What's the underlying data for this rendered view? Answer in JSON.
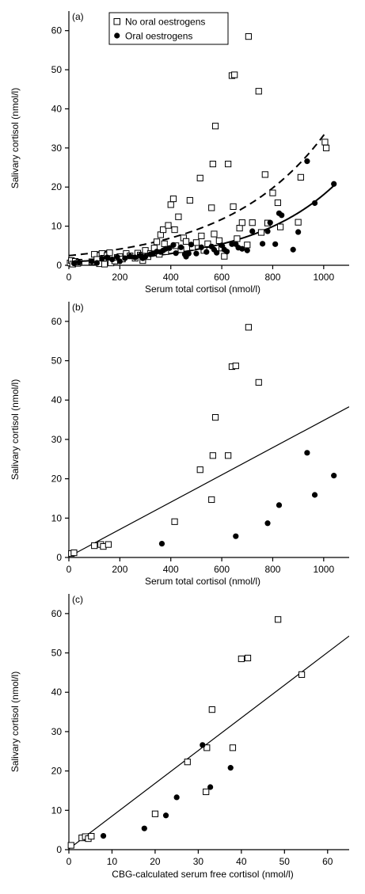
{
  "chart_data": [
    {
      "type": "scatter",
      "panel_label": "(a)",
      "xlabel": "Serum total cortisol (nmol/l)",
      "ylabel": "Salivary cortisol (nmol/l)",
      "xlim": [
        0,
        1100
      ],
      "ylim": [
        0,
        65
      ],
      "xticks": [
        0,
        200,
        400,
        600,
        800,
        1000
      ],
      "yticks": [
        0,
        10,
        20,
        30,
        40,
        50,
        60
      ],
      "legend": {
        "placement": "top-left",
        "entries": [
          "No oral oestrogens",
          "Oral oestrogens"
        ]
      },
      "series": [
        {
          "name": "No oral oestrogens",
          "marker": "open-square",
          "points": [
            [
              5,
              0.6
            ],
            [
              10,
              1.2
            ],
            [
              15,
              0.3
            ],
            [
              25,
              1.0
            ],
            [
              35,
              0.5
            ],
            [
              40,
              0.8
            ],
            [
              90,
              0.9
            ],
            [
              100,
              2.8
            ],
            [
              110,
              1.5
            ],
            [
              120,
              0.4
            ],
            [
              130,
              3.0
            ],
            [
              135,
              1.8
            ],
            [
              140,
              0.3
            ],
            [
              150,
              2.5
            ],
            [
              160,
              3.2
            ],
            [
              165,
              0.6
            ],
            [
              180,
              1.1
            ],
            [
              190,
              2.0
            ],
            [
              200,
              2.2
            ],
            [
              210,
              1.6
            ],
            [
              225,
              3.0
            ],
            [
              240,
              2.4
            ],
            [
              260,
              1.8
            ],
            [
              270,
              3.1
            ],
            [
              280,
              2.6
            ],
            [
              290,
              1.2
            ],
            [
              300,
              3.8
            ],
            [
              310,
              2.2
            ],
            [
              320,
              3.0
            ],
            [
              335,
              4.4
            ],
            [
              345,
              6.0
            ],
            [
              355,
              2.8
            ],
            [
              360,
              7.8
            ],
            [
              370,
              9.1
            ],
            [
              375,
              5.5
            ],
            [
              380,
              3.5
            ],
            [
              390,
              10.2
            ],
            [
              400,
              15.5
            ],
            [
              410,
              17.0
            ],
            [
              415,
              9.1
            ],
            [
              420,
              5.0
            ],
            [
              430,
              12.4
            ],
            [
              440,
              4.0
            ],
            [
              450,
              7.0
            ],
            [
              460,
              6.1
            ],
            [
              475,
              16.6
            ],
            [
              485,
              4.6
            ],
            [
              500,
              5.8
            ],
            [
              515,
              22.3
            ],
            [
              520,
              7.5
            ],
            [
              530,
              3.8
            ],
            [
              545,
              5.5
            ],
            [
              560,
              14.7
            ],
            [
              565,
              25.9
            ],
            [
              570,
              8.0
            ],
            [
              575,
              35.6
            ],
            [
              590,
              6.3
            ],
            [
              600,
              4.4
            ],
            [
              610,
              2.3
            ],
            [
              625,
              25.9
            ],
            [
              640,
              48.5
            ],
            [
              645,
              15.0
            ],
            [
              650,
              48.7
            ],
            [
              660,
              6.8
            ],
            [
              670,
              9.5
            ],
            [
              680,
              10.9
            ],
            [
              700,
              5.2
            ],
            [
              705,
              58.5
            ],
            [
              720,
              10.9
            ],
            [
              745,
              44.5
            ],
            [
              755,
              8.4
            ],
            [
              770,
              23.2
            ],
            [
              780,
              10.8
            ],
            [
              800,
              18.5
            ],
            [
              820,
              16.0
            ],
            [
              830,
              9.8
            ],
            [
              900,
              11.0
            ],
            [
              910,
              22.5
            ],
            [
              1005,
              31.5
            ],
            [
              1010,
              30.0
            ]
          ]
        },
        {
          "name": "Oral oestrogens",
          "marker": "filled-circle",
          "points": [
            [
              20,
              0.5
            ],
            [
              40,
              0.8
            ],
            [
              90,
              1.0
            ],
            [
              110,
              0.6
            ],
            [
              130,
              1.7
            ],
            [
              150,
              2.0
            ],
            [
              170,
              1.5
            ],
            [
              190,
              2.1
            ],
            [
              200,
              1.0
            ],
            [
              220,
              1.8
            ],
            [
              240,
              2.3
            ],
            [
              260,
              2.0
            ],
            [
              280,
              2.5
            ],
            [
              290,
              1.8
            ],
            [
              300,
              2.2
            ],
            [
              320,
              2.8
            ],
            [
              330,
              3.0
            ],
            [
              345,
              3.5
            ],
            [
              360,
              3.4
            ],
            [
              370,
              3.8
            ],
            [
              380,
              4.2
            ],
            [
              395,
              4.4
            ],
            [
              410,
              5.2
            ],
            [
              420,
              3.1
            ],
            [
              440,
              4.6
            ],
            [
              455,
              2.8
            ],
            [
              460,
              2.2
            ],
            [
              470,
              3.0
            ],
            [
              480,
              5.3
            ],
            [
              500,
              3.0
            ],
            [
              520,
              4.6
            ],
            [
              540,
              3.4
            ],
            [
              560,
              4.8
            ],
            [
              570,
              4.0
            ],
            [
              580,
              3.2
            ],
            [
              600,
              5.1
            ],
            [
              610,
              4.0
            ],
            [
              620,
              3.5
            ],
            [
              640,
              5.4
            ],
            [
              655,
              5.4
            ],
            [
              665,
              4.5
            ],
            [
              680,
              4.2
            ],
            [
              700,
              3.8
            ],
            [
              720,
              8.7
            ],
            [
              760,
              5.5
            ],
            [
              780,
              8.7
            ],
            [
              790,
              10.9
            ],
            [
              810,
              5.4
            ],
            [
              825,
              13.3
            ],
            [
              835,
              12.8
            ],
            [
              880,
              4.0
            ],
            [
              900,
              8.5
            ],
            [
              935,
              26.6
            ],
            [
              965,
              15.9
            ],
            [
              1040,
              20.8
            ]
          ]
        }
      ],
      "fits": [
        {
          "series": "No oral oestrogens",
          "style": "dashed",
          "form": "exponential",
          "a": 2.47,
          "b": 0.0026
        },
        {
          "series": "Oral oestrogens",
          "style": "solid",
          "form": "exponential",
          "a": 0.9,
          "b": 0.003
        }
      ]
    },
    {
      "type": "scatter",
      "panel_label": "(b)",
      "xlabel": "Serum total cortisol (nmol/l)",
      "ylabel": "Salivary cortisol (nmol/l)",
      "xlim": [
        0,
        1100
      ],
      "ylim": [
        0,
        65
      ],
      "xticks": [
        0,
        200,
        400,
        600,
        800,
        1000
      ],
      "yticks": [
        0,
        10,
        20,
        30,
        40,
        50,
        60
      ],
      "series": [
        {
          "name": "No oral oestrogens",
          "marker": "open-square",
          "points": [
            [
              10,
              1.0
            ],
            [
              20,
              1.2
            ],
            [
              100,
              3.0
            ],
            [
              125,
              3.3
            ],
            [
              135,
              2.8
            ],
            [
              155,
              3.3
            ],
            [
              415,
              9.1
            ],
            [
              515,
              22.3
            ],
            [
              560,
              14.7
            ],
            [
              565,
              25.9
            ],
            [
              575,
              35.6
            ],
            [
              625,
              25.9
            ],
            [
              640,
              48.5
            ],
            [
              655,
              48.7
            ],
            [
              705,
              58.5
            ],
            [
              745,
              44.5
            ]
          ]
        },
        {
          "name": "Oral oestrogens",
          "marker": "filled-circle",
          "points": [
            [
              365,
              3.5
            ],
            [
              655,
              5.4
            ],
            [
              780,
              8.7
            ],
            [
              825,
              13.3
            ],
            [
              935,
              26.6
            ],
            [
              965,
              15.9
            ],
            [
              1040,
              20.8
            ]
          ]
        }
      ],
      "fits": [
        {
          "style": "solid",
          "form": "linear",
          "from": [
            0,
            0.2
          ],
          "to": [
            1100,
            38.3
          ]
        }
      ]
    },
    {
      "type": "scatter",
      "panel_label": "(c)",
      "xlabel": "CBG-calculated serum free cortisol (nmol/l)",
      "ylabel": "Salivary cortisol (nmol/l)",
      "xlim": [
        0,
        65
      ],
      "ylim": [
        0,
        65
      ],
      "xticks": [
        0,
        10,
        20,
        30,
        40,
        50,
        60
      ],
      "yticks": [
        0,
        10,
        20,
        30,
        40,
        50,
        60
      ],
      "series": [
        {
          "name": "No oral oestrogens",
          "marker": "open-square",
          "points": [
            [
              0.5,
              1.1
            ],
            [
              3.0,
              3.0
            ],
            [
              3.8,
              3.3
            ],
            [
              4.5,
              2.8
            ],
            [
              5.2,
              3.4
            ],
            [
              20.0,
              9.1
            ],
            [
              27.5,
              22.3
            ],
            [
              31.8,
              14.7
            ],
            [
              32.0,
              25.9
            ],
            [
              33.2,
              35.6
            ],
            [
              38.0,
              25.9
            ],
            [
              40.0,
              48.5
            ],
            [
              41.5,
              48.7
            ],
            [
              48.5,
              58.5
            ],
            [
              54.0,
              44.5
            ]
          ]
        },
        {
          "name": "Oral oestrogens",
          "marker": "filled-circle",
          "points": [
            [
              8.0,
              3.5
            ],
            [
              17.5,
              5.4
            ],
            [
              22.5,
              8.7
            ],
            [
              25.0,
              13.3
            ],
            [
              31.0,
              26.6
            ],
            [
              32.8,
              15.9
            ],
            [
              37.5,
              20.8
            ]
          ]
        }
      ],
      "fits": [
        {
          "style": "solid",
          "form": "linear",
          "from": [
            0,
            0.2
          ],
          "to": [
            65,
            54.3
          ]
        }
      ]
    }
  ]
}
